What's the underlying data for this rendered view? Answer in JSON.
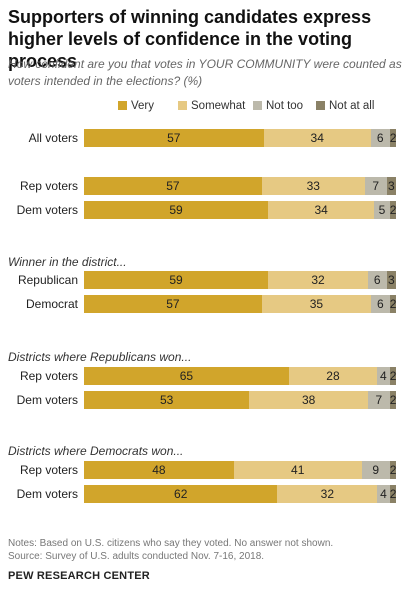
{
  "header": {
    "title": "Supporters of winning candidates express higher levels of confidence in the voting process",
    "subtitle": "How confident are you that votes in YOUR COMMUNITY were counted as voters intended in the elections? (%)"
  },
  "colors": {
    "Very": "#d1a52b",
    "Somewhat": "#e6c983",
    "Not too": "#bcb9ab",
    "Not at all": "#8a8166"
  },
  "chart_data": {
    "type": "bar",
    "stacked": true,
    "orientation": "horizontal",
    "legend": [
      "Very",
      "Somewhat",
      "Not too",
      "Not at all"
    ],
    "legend_position": "top",
    "grid": false,
    "groups": [
      {
        "title": "",
        "rows": [
          {
            "label": "All voters",
            "values": [
              57,
              34,
              6,
              2
            ]
          }
        ]
      },
      {
        "title": "",
        "rows": [
          {
            "label": "Rep voters",
            "values": [
              57,
              33,
              7,
              3
            ]
          },
          {
            "label": "Dem voters",
            "values": [
              59,
              34,
              5,
              2
            ]
          }
        ]
      },
      {
        "title": "Winner in the district...",
        "rows": [
          {
            "label": "Republican",
            "values": [
              59,
              32,
              6,
              3
            ]
          },
          {
            "label": "Democrat",
            "values": [
              57,
              35,
              6,
              2
            ]
          }
        ]
      },
      {
        "title": "Districts where Republicans won...",
        "rows": [
          {
            "label": "Rep voters",
            "values": [
              65,
              28,
              4,
              2
            ]
          },
          {
            "label": "Dem voters",
            "values": [
              53,
              38,
              7,
              2
            ]
          }
        ]
      },
      {
        "title": "Districts where Democrats won...",
        "rows": [
          {
            "label": "Rep voters",
            "values": [
              48,
              41,
              9,
              2
            ]
          },
          {
            "label": "Dem voters",
            "values": [
              62,
              32,
              4,
              2
            ]
          }
        ]
      }
    ]
  },
  "footer": {
    "notes": "Notes: Based on U.S. citizens who say they voted. No answer not shown.",
    "source": "Source: Survey of U.S. adults conducted Nov. 7-16, 2018.",
    "org": "PEW RESEARCH CENTER"
  }
}
